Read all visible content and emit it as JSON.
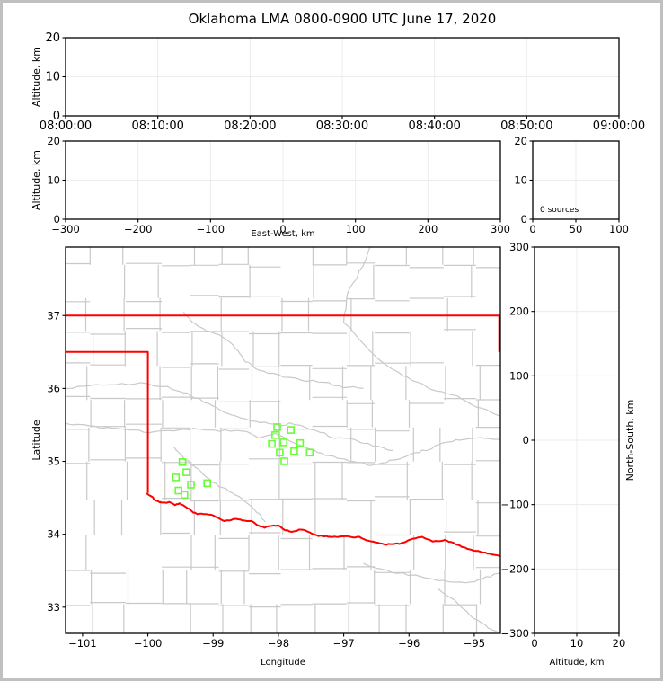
{
  "figure": {
    "title": "Oklahoma LMA 0800-0900 UTC June 17, 2020",
    "sources_count": 0
  },
  "colors": {
    "state_border": "#ff0000",
    "county_lines": "#c9c9c9",
    "rivers": "#c9c9c9",
    "station_marker": "#66ff33",
    "grid": "#ececec",
    "axis": "#000000",
    "text": "#000000",
    "figure_border": "#c0c0c0",
    "background": "#ffffff"
  },
  "chart_data": [
    {
      "id": "alt_vs_time",
      "name": "Altitude vs Time panel",
      "type": "scatter",
      "points": [],
      "x_tick_labels": [
        "08:00:00",
        "08:10:00",
        "08:20:00",
        "08:30:00",
        "08:40:00",
        "08:50:00",
        "09:00:00"
      ],
      "xlabel": "",
      "ylabel": "Altitude, km",
      "ylim": [
        0,
        20
      ],
      "yticks": [
        0,
        10,
        20
      ],
      "grid": true
    },
    {
      "id": "alt_vs_ew",
      "name": "Altitude vs East-West panel",
      "type": "scatter",
      "points": [],
      "xlim": [
        -300,
        300
      ],
      "xticks": [
        -300,
        -200,
        -100,
        0,
        100,
        200,
        300
      ],
      "xlabel": "East-West, km",
      "ylabel": "Altitude, km",
      "ylim": [
        0,
        20
      ],
      "yticks": [
        0,
        10,
        20
      ],
      "grid": true
    },
    {
      "id": "source_histogram",
      "name": "Altitude histogram panel",
      "type": "line",
      "points": [],
      "annotation": "0 sources",
      "xlim": [
        0,
        100
      ],
      "xticks": [
        0,
        50,
        100
      ],
      "xlabel": "",
      "ylabel": "",
      "ylim": [
        0,
        20
      ],
      "yticks": [
        0,
        10,
        20
      ],
      "grid": true
    },
    {
      "id": "plan_view_map",
      "name": "Plan view map panel",
      "type": "scatter",
      "points": [],
      "xlim": [
        -101.26,
        -94.6
      ],
      "xticks": [
        -101,
        -100,
        -99,
        -98,
        -97,
        -96,
        -95
      ],
      "xlabel": "Longitude",
      "ylim": [
        32.64,
        37.94
      ],
      "yticks": [
        33,
        34,
        35,
        36,
        37
      ],
      "ylabel": "Latitude",
      "grid": false,
      "stations": [
        [
          -99.47,
          34.99
        ],
        [
          -99.41,
          34.85
        ],
        [
          -99.57,
          34.78
        ],
        [
          -99.34,
          34.68
        ],
        [
          -99.09,
          34.7
        ],
        [
          -99.53,
          34.6
        ],
        [
          -99.44,
          34.54
        ],
        [
          -98.02,
          35.47
        ],
        [
          -97.81,
          35.43
        ],
        [
          -98.05,
          35.36
        ],
        [
          -97.92,
          35.26
        ],
        [
          -98.1,
          35.24
        ],
        [
          -97.67,
          35.25
        ],
        [
          -97.76,
          35.14
        ],
        [
          -97.52,
          35.12
        ],
        [
          -97.98,
          35.12
        ],
        [
          -97.91,
          35.0
        ]
      ],
      "state_border": {
        "kansas_line": [
          [
            -101.26,
            37.0
          ],
          [
            -94.6,
            37.0
          ]
        ],
        "missouri_line": [
          [
            -94.618,
            37.0
          ],
          [
            -94.618,
            36.5
          ]
        ],
        "panhandle": [
          [
            -101.26,
            36.5
          ],
          [
            -100.0,
            36.5
          ],
          [
            -100.0,
            34.565
          ]
        ],
        "red_river": [
          [
            -100.02,
            34.565
          ],
          [
            -99.95,
            34.52
          ],
          [
            -99.88,
            34.46
          ],
          [
            -99.79,
            34.43
          ],
          [
            -99.67,
            34.44
          ],
          [
            -99.58,
            34.4
          ],
          [
            -99.51,
            34.43
          ],
          [
            -99.43,
            34.38
          ],
          [
            -99.38,
            34.35
          ],
          [
            -99.3,
            34.3
          ],
          [
            -99.24,
            34.28
          ],
          [
            -99.15,
            34.28
          ],
          [
            -99.03,
            34.27
          ],
          [
            -98.92,
            34.22
          ],
          [
            -98.82,
            34.18
          ],
          [
            -98.72,
            34.2
          ],
          [
            -98.62,
            34.21
          ],
          [
            -98.52,
            34.19
          ],
          [
            -98.41,
            34.18
          ],
          [
            -98.31,
            34.12
          ],
          [
            -98.21,
            34.09
          ],
          [
            -98.1,
            34.12
          ],
          [
            -98.0,
            34.12
          ],
          [
            -97.9,
            34.06
          ],
          [
            -97.79,
            34.03
          ],
          [
            -97.69,
            34.06
          ],
          [
            -97.59,
            34.06
          ],
          [
            -97.48,
            34.0
          ],
          [
            -97.38,
            33.98
          ],
          [
            -97.27,
            33.97
          ],
          [
            -97.17,
            33.96
          ],
          [
            -97.07,
            33.97
          ],
          [
            -96.97,
            33.97
          ],
          [
            -96.86,
            33.96
          ],
          [
            -96.76,
            33.96
          ],
          [
            -96.65,
            33.92
          ],
          [
            -96.55,
            33.9
          ],
          [
            -96.45,
            33.87
          ],
          [
            -96.35,
            33.86
          ],
          [
            -96.24,
            33.87
          ],
          [
            -96.14,
            33.87
          ],
          [
            -96.05,
            33.9
          ],
          [
            -95.96,
            33.93
          ],
          [
            -95.88,
            33.95
          ],
          [
            -95.8,
            33.96
          ],
          [
            -95.71,
            33.93
          ],
          [
            -95.63,
            33.9
          ],
          [
            -95.54,
            33.91
          ],
          [
            -95.45,
            33.92
          ],
          [
            -95.36,
            33.89
          ],
          [
            -95.27,
            33.86
          ],
          [
            -95.19,
            33.83
          ],
          [
            -95.11,
            33.8
          ],
          [
            -95.01,
            33.78
          ],
          [
            -94.9,
            33.76
          ],
          [
            -94.8,
            33.74
          ],
          [
            -94.72,
            33.72
          ],
          [
            -94.6,
            33.7
          ]
        ]
      },
      "rivers": [
        [
          [
            -99.45,
            37.05
          ],
          [
            -99.33,
            36.92
          ],
          [
            -99.1,
            36.8
          ],
          [
            -98.85,
            36.7
          ],
          [
            -98.65,
            36.56
          ],
          [
            -98.52,
            36.38
          ],
          [
            -98.3,
            36.26
          ],
          [
            -98.0,
            36.18
          ],
          [
            -97.65,
            36.12
          ],
          [
            -97.3,
            36.08
          ],
          [
            -97.0,
            36.02
          ],
          [
            -96.7,
            36.0
          ]
        ],
        [
          [
            -96.6,
            37.94
          ],
          [
            -96.75,
            37.6
          ],
          [
            -96.95,
            37.3
          ],
          [
            -96.99,
            36.9
          ],
          [
            -96.7,
            36.6
          ],
          [
            -96.4,
            36.35
          ],
          [
            -96.1,
            36.18
          ],
          [
            -95.8,
            36.05
          ],
          [
            -95.5,
            35.95
          ],
          [
            -95.2,
            35.87
          ],
          [
            -94.9,
            35.72
          ],
          [
            -94.6,
            35.62
          ]
        ],
        [
          [
            -101.26,
            36.0
          ],
          [
            -100.9,
            36.05
          ],
          [
            -100.5,
            36.05
          ],
          [
            -100.1,
            36.08
          ],
          [
            -99.7,
            36.02
          ],
          [
            -99.45,
            35.95
          ],
          [
            -99.2,
            35.85
          ],
          [
            -98.95,
            35.72
          ],
          [
            -98.65,
            35.62
          ],
          [
            -98.35,
            35.55
          ],
          [
            -98.05,
            35.5
          ],
          [
            -97.75,
            35.52
          ],
          [
            -97.45,
            35.42
          ],
          [
            -97.15,
            35.33
          ],
          [
            -96.85,
            35.3
          ],
          [
            -96.55,
            35.22
          ],
          [
            -96.25,
            35.15
          ]
        ],
        [
          [
            -101.26,
            35.52
          ],
          [
            -100.9,
            35.48
          ],
          [
            -100.55,
            35.45
          ],
          [
            -100.2,
            35.42
          ],
          [
            -99.9,
            35.4
          ],
          [
            -99.6,
            35.42
          ],
          [
            -99.3,
            35.45
          ],
          [
            -98.9,
            35.42
          ],
          [
            -98.55,
            35.42
          ],
          [
            -98.3,
            35.33
          ],
          [
            -98.05,
            35.38
          ],
          [
            -97.85,
            35.3
          ],
          [
            -97.6,
            35.2
          ],
          [
            -97.35,
            35.1
          ],
          [
            -97.1,
            35.05
          ],
          [
            -96.85,
            35.0
          ],
          [
            -96.6,
            34.95
          ],
          [
            -96.35,
            35.0
          ],
          [
            -96.1,
            35.05
          ],
          [
            -95.85,
            35.12
          ],
          [
            -95.6,
            35.2
          ],
          [
            -95.35,
            35.28
          ],
          [
            -95.1,
            35.3
          ],
          [
            -94.85,
            35.32
          ],
          [
            -94.6,
            35.3
          ]
        ],
        [
          [
            -99.6,
            35.2
          ],
          [
            -99.45,
            35.05
          ],
          [
            -99.3,
            34.95
          ],
          [
            -99.15,
            34.82
          ],
          [
            -99.0,
            34.7
          ],
          [
            -98.8,
            34.62
          ],
          [
            -98.6,
            34.52
          ],
          [
            -98.45,
            34.4
          ],
          [
            -98.3,
            34.28
          ],
          [
            -98.2,
            34.17
          ]
        ],
        [
          [
            -96.7,
            33.6
          ],
          [
            -96.35,
            33.5
          ],
          [
            -96.0,
            33.45
          ],
          [
            -95.65,
            33.38
          ],
          [
            -95.3,
            33.33
          ],
          [
            -95.0,
            33.36
          ],
          [
            -94.75,
            33.42
          ],
          [
            -94.6,
            33.47
          ]
        ],
        [
          [
            -95.55,
            33.25
          ],
          [
            -95.25,
            33.05
          ],
          [
            -95.0,
            32.85
          ],
          [
            -94.8,
            32.72
          ],
          [
            -94.65,
            32.66
          ]
        ]
      ]
    },
    {
      "id": "alt_vs_ns",
      "name": "North-South vs Altitude panel",
      "type": "scatter",
      "points": [],
      "xlim": [
        0,
        20
      ],
      "xticks": [
        0,
        10,
        20
      ],
      "xlabel": "Altitude, km",
      "ylim": [
        -300,
        300
      ],
      "yticks": [
        -300,
        -200,
        -100,
        0,
        100,
        200,
        300
      ],
      "ylabel": "North-South, km",
      "ylabel_side": "right",
      "grid": true
    }
  ]
}
